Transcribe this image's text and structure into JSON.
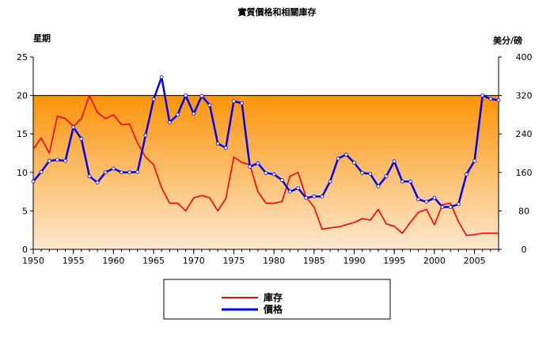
{
  "chart_data": {
    "type": "line",
    "title": "實質價格和相關庫存",
    "y_left_label": "星期",
    "y_right_label": "美分/磅",
    "x_ticks": [
      1950,
      1955,
      1960,
      1965,
      1970,
      1975,
      1980,
      1985,
      1990,
      1995,
      2000,
      2005
    ],
    "y_left_ticks": [
      0,
      5,
      10,
      15,
      20,
      25
    ],
    "y_right_ticks": [
      0,
      80,
      160,
      240,
      320,
      400
    ],
    "xlim": [
      1950,
      2008
    ],
    "ylim_left": [
      0,
      25
    ],
    "ylim_right": [
      0,
      400
    ],
    "reference_level_left": 20,
    "grid": false,
    "legend_position": "bottom",
    "series": [
      {
        "name": "庫存",
        "axis": "left",
        "color": "#ff0000",
        "markers": false,
        "x": [
          1950,
          1951,
          1952,
          1953,
          1954,
          1955,
          1956,
          1957,
          1958,
          1959,
          1960,
          1961,
          1962,
          1963,
          1964,
          1965,
          1966,
          1967,
          1968,
          1969,
          1970,
          1971,
          1972,
          1973,
          1974,
          1975,
          1976,
          1977,
          1978,
          1979,
          1980,
          1981,
          1982,
          1983,
          1984,
          1985,
          1986,
          1987,
          1988,
          1989,
          1990,
          1991,
          1992,
          1993,
          1994,
          1995,
          1996,
          1997,
          1998,
          1999,
          2000,
          2001,
          2002,
          2003,
          2004,
          2005,
          2006,
          2007,
          2008
        ],
        "values": [
          13,
          14.5,
          12.5,
          17.3,
          17,
          16,
          17,
          20,
          17.8,
          17,
          17.5,
          16.2,
          16.3,
          13.8,
          12,
          11,
          8,
          6,
          6,
          5,
          6.7,
          7,
          6.7,
          5,
          6.6,
          12,
          11.3,
          11,
          7.5,
          6,
          6,
          6.2,
          9.5,
          10,
          6.8,
          5.5,
          2.6,
          2.8,
          2.9,
          3.2,
          3.5,
          4,
          3.8,
          5.2,
          3.3,
          3,
          2.1,
          3.5,
          4.8,
          5.2,
          3.2,
          5.8,
          6,
          3.6,
          1.8,
          1.9,
          2.1,
          2.1,
          2.1
        ]
      },
      {
        "name": "價格",
        "axis": "right",
        "color": "#0000ff",
        "markers": true,
        "x": [
          1950,
          1951,
          1952,
          1953,
          1954,
          1955,
          1956,
          1957,
          1958,
          1959,
          1960,
          1961,
          1962,
          1963,
          1964,
          1965,
          1966,
          1967,
          1968,
          1969,
          1970,
          1971,
          1972,
          1973,
          1974,
          1975,
          1976,
          1977,
          1978,
          1979,
          1980,
          1981,
          1982,
          1983,
          1984,
          1985,
          1986,
          1987,
          1988,
          1989,
          1990,
          1991,
          1992,
          1993,
          1994,
          1995,
          1996,
          1997,
          1998,
          1999,
          2000,
          2001,
          2002,
          2003,
          2004,
          2005,
          2006,
          2007,
          2008
        ],
        "values": [
          141,
          161,
          184,
          186,
          184,
          254,
          230,
          152,
          139,
          160,
          168,
          160,
          160,
          161,
          237,
          312,
          358,
          264,
          280,
          320,
          282,
          319,
          300,
          220,
          211,
          308,
          304,
          172,
          179,
          159,
          156,
          144,
          120,
          127,
          107,
          110,
          110,
          141,
          189,
          197,
          180,
          159,
          157,
          131,
          152,
          183,
          141,
          141,
          104,
          99,
          107,
          88,
          88,
          94,
          156,
          184,
          320,
          313,
          310
        ]
      }
    ]
  }
}
